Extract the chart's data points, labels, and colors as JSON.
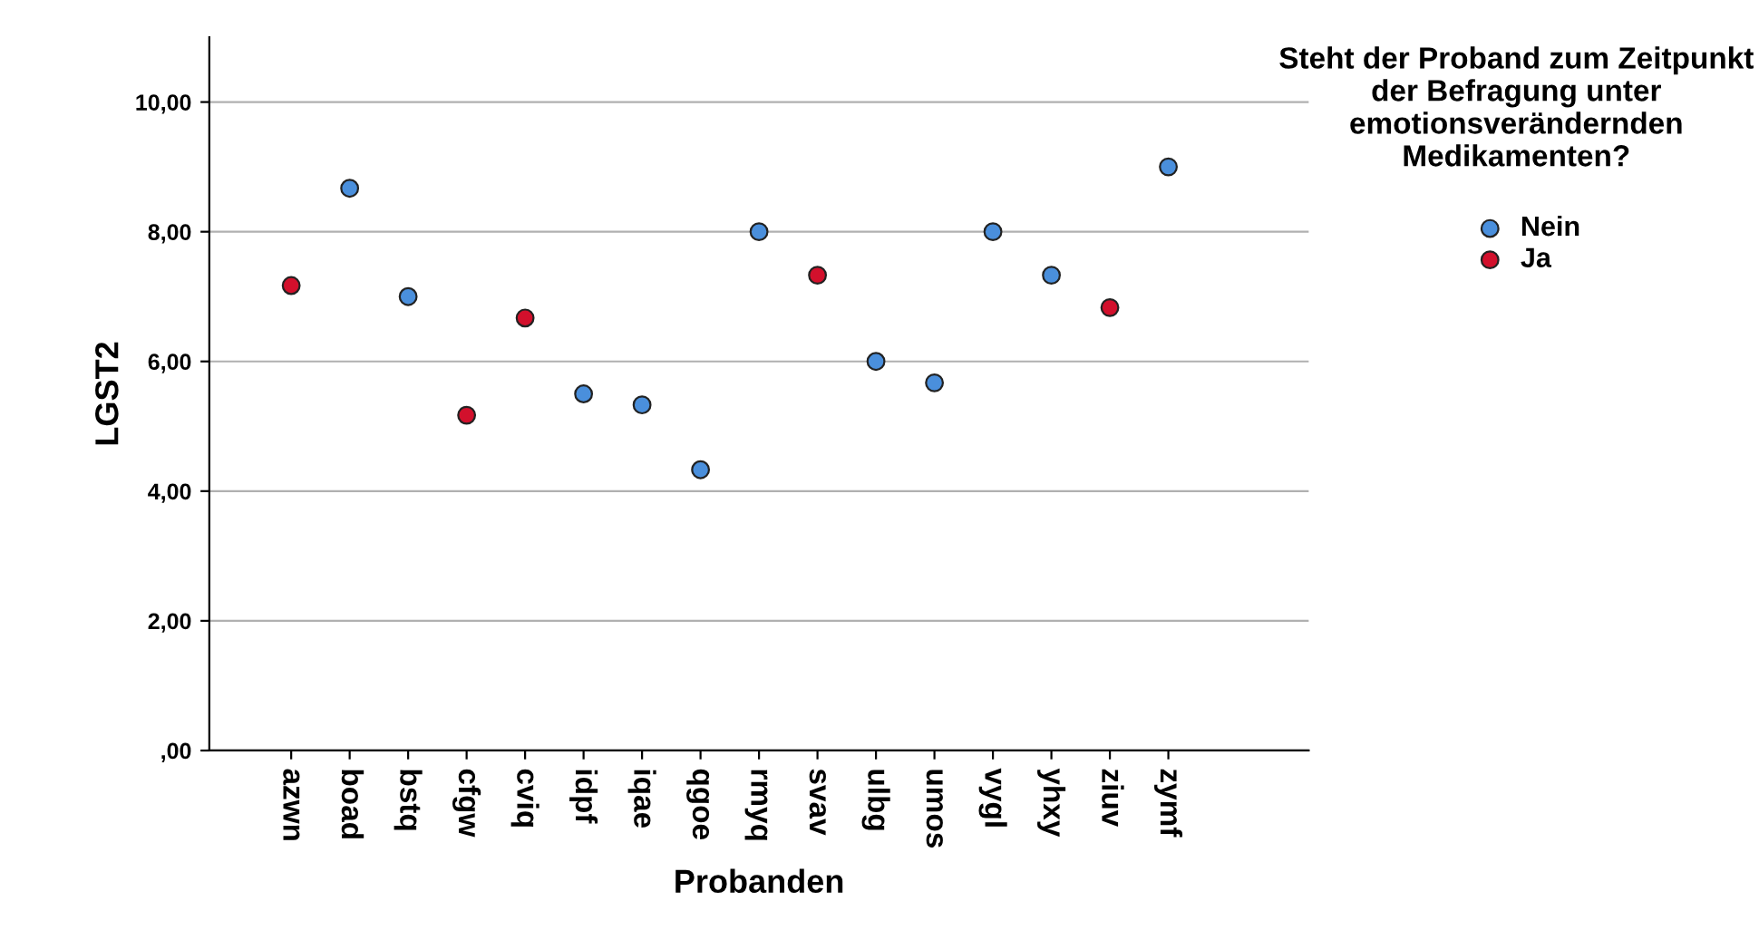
{
  "chart_data": {
    "type": "scatter",
    "xlabel": "Probanden",
    "ylabel": "LGST2",
    "legend_title": "Steht der Proband zum Zeitpunkt der Befragung unter emotionsverändernden Medikamenten?",
    "categories": [
      "azwn",
      "boad",
      "bstq",
      "cfgw",
      "cviq",
      "idpf",
      "iqae",
      "qgoe",
      "rmyq",
      "svav",
      "ulbg",
      "umos",
      "vygl",
      "yhxy",
      "ziuv",
      "zymf"
    ],
    "series": [
      {
        "name": "Nein",
        "color": "#4a8fdc",
        "values": [
          null,
          8.67,
          7.0,
          null,
          null,
          5.5,
          5.33,
          4.33,
          8.0,
          null,
          6.0,
          5.67,
          8.0,
          7.33,
          null,
          9.0
        ]
      },
      {
        "name": "Ja",
        "color": "#d2102c",
        "values": [
          7.17,
          null,
          null,
          5.17,
          6.67,
          null,
          null,
          null,
          null,
          7.33,
          null,
          null,
          null,
          null,
          6.83,
          null
        ]
      }
    ],
    "ylim": [
      0,
      11
    ],
    "yticks": [
      {
        "value": 0,
        "label": ",00"
      },
      {
        "value": 2,
        "label": "2,00"
      },
      {
        "value": 4,
        "label": "4,00"
      },
      {
        "value": 6,
        "label": "6,00"
      },
      {
        "value": 8,
        "label": "8,00"
      },
      {
        "value": 10,
        "label": "10,00"
      }
    ],
    "grid": "y",
    "legend": "top right",
    "marker": "circle"
  }
}
